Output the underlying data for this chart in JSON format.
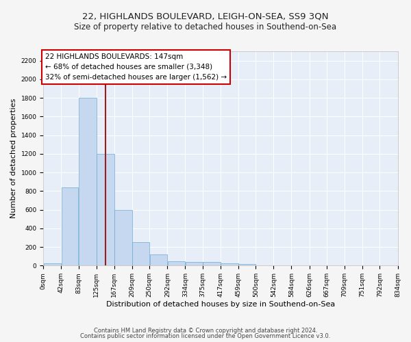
{
  "title1": "22, HIGHLANDS BOULEVARD, LEIGH-ON-SEA, SS9 3QN",
  "title2": "Size of property relative to detached houses in Southend-on-Sea",
  "xlabel": "Distribution of detached houses by size in Southend-on-Sea",
  "ylabel": "Number of detached properties",
  "footer1": "Contains HM Land Registry data © Crown copyright and database right 2024.",
  "footer2": "Contains public sector information licensed under the Open Government Licence v3.0.",
  "annotation_line1": "22 HIGHLANDS BOULEVARDS: 147sqm",
  "annotation_line2": "← 68% of detached houses are smaller (3,348)",
  "annotation_line3": "32% of semi-detached houses are larger (1,562) →",
  "bar_color": "#c5d8f0",
  "bar_edge_color": "#6aaad4",
  "vline_color": "#9b1c1c",
  "vline_x": 147,
  "bin_edges": [
    0,
    42,
    83,
    125,
    167,
    209,
    250,
    292,
    334,
    375,
    417,
    459,
    500,
    542,
    584,
    626,
    667,
    709,
    751,
    792,
    834
  ],
  "bar_heights": [
    25,
    840,
    1800,
    1200,
    595,
    255,
    120,
    45,
    42,
    40,
    25,
    15,
    5,
    2,
    1,
    1,
    0,
    0,
    0,
    0
  ],
  "ylim": [
    0,
    2300
  ],
  "yticks": [
    0,
    200,
    400,
    600,
    800,
    1000,
    1200,
    1400,
    1600,
    1800,
    2000,
    2200
  ],
  "tick_labels": [
    "0sqm",
    "42sqm",
    "83sqm",
    "125sqm",
    "167sqm",
    "209sqm",
    "250sqm",
    "292sqm",
    "334sqm",
    "375sqm",
    "417sqm",
    "459sqm",
    "500sqm",
    "542sqm",
    "584sqm",
    "626sqm",
    "667sqm",
    "709sqm",
    "751sqm",
    "792sqm",
    "834sqm"
  ],
  "bg_color": "#e8eef8",
  "grid_color": "#ffffff",
  "fig_bg_color": "#f5f5f5",
  "title1_fontsize": 9.5,
  "title2_fontsize": 8.5,
  "xlabel_fontsize": 8,
  "ylabel_fontsize": 8,
  "tick_fontsize": 6.5,
  "annotation_fontsize": 7.5,
  "footer_fontsize": 6
}
